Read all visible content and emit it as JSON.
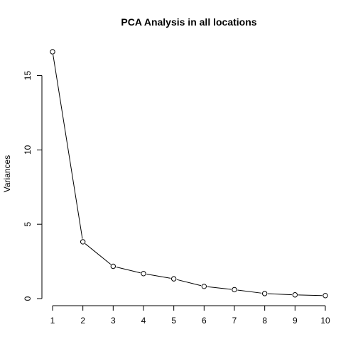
{
  "chart_data": {
    "type": "line",
    "title": "PCA Analysis in all locations",
    "xlabel": "",
    "ylabel": "Variances",
    "x": [
      1,
      2,
      3,
      4,
      5,
      6,
      7,
      8,
      9,
      10
    ],
    "series": [
      {
        "values": [
          16.6,
          3.82,
          2.17,
          1.68,
          1.33,
          0.82,
          0.6,
          0.34,
          0.25,
          0.2
        ]
      }
    ],
    "x_ticks": [
      "1",
      "2",
      "3",
      "4",
      "5",
      "6",
      "7",
      "8",
      "9",
      "10"
    ],
    "y_ticks": [
      "0",
      "5",
      "10",
      "15"
    ],
    "xlim": [
      1,
      10
    ],
    "ylim": [
      0,
      16.6
    ],
    "grid": false,
    "marker": "open-circle",
    "line_color": "#000000"
  }
}
